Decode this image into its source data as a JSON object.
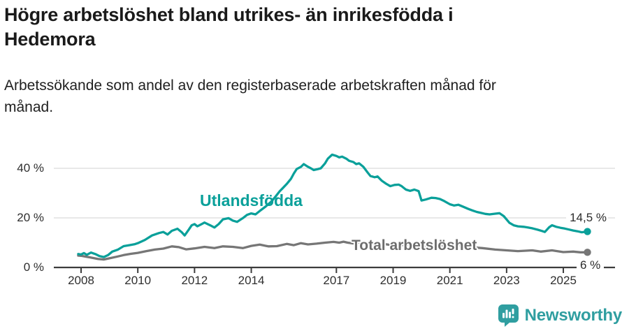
{
  "header": {
    "title_lines": [
      "Högre arbetslöshet bland utrikes- än inrikesfödda i",
      "Hedemora"
    ],
    "subtitle_lines": [
      "Arbetssökande som andel av den registerbaserade arbetskraften månad för",
      "månad."
    ]
  },
  "chart_data": {
    "type": "line",
    "title": "Högre arbetslöshet bland utrikes- än inrikesfödda i Hedemora",
    "subtitle": "Arbetssökande som andel av den registerbaserade arbetskraften månad för månad.",
    "xlabel": "",
    "ylabel": "",
    "ylim": [
      0,
      48
    ],
    "xlim": [
      2007.9,
      2026.0
    ],
    "grid": "horizontal",
    "legend_position": "inline-labels",
    "y_ticks": [
      {
        "value": 0,
        "label": "0 %"
      },
      {
        "value": 20,
        "label": "20 %"
      },
      {
        "value": 40,
        "label": "40 %"
      }
    ],
    "x_ticks": [
      {
        "value": 2008,
        "label": "2008"
      },
      {
        "value": 2010,
        "label": "2010"
      },
      {
        "value": 2012,
        "label": "2012"
      },
      {
        "value": 2014,
        "label": "2014"
      },
      {
        "value": 2017,
        "label": "2017"
      },
      {
        "value": 2019,
        "label": "2019"
      },
      {
        "value": 2021,
        "label": "2021"
      },
      {
        "value": 2023,
        "label": "2023"
      },
      {
        "value": 2025,
        "label": "2025"
      }
    ],
    "series": [
      {
        "name": "Utlandsfödda",
        "color": "#0aa09a",
        "end_label": "14,5 %",
        "end_value": 14.5,
        "points": [
          [
            2007.9,
            5.4
          ],
          [
            2008.0,
            5.2
          ],
          [
            2008.1,
            5.8
          ],
          [
            2008.2,
            5.1
          ],
          [
            2008.35,
            6.0
          ],
          [
            2008.5,
            5.4
          ],
          [
            2008.65,
            4.6
          ],
          [
            2008.8,
            4.2
          ],
          [
            2008.95,
            5.0
          ],
          [
            2009.1,
            6.4
          ],
          [
            2009.3,
            7.2
          ],
          [
            2009.5,
            8.6
          ],
          [
            2009.7,
            9.0
          ],
          [
            2009.9,
            9.4
          ],
          [
            2010.0,
            9.8
          ],
          [
            2010.25,
            11.1
          ],
          [
            2010.5,
            12.9
          ],
          [
            2010.75,
            13.9
          ],
          [
            2010.9,
            14.3
          ],
          [
            2011.05,
            13.3
          ],
          [
            2011.2,
            14.8
          ],
          [
            2011.4,
            15.6
          ],
          [
            2011.55,
            14.2
          ],
          [
            2011.65,
            12.9
          ],
          [
            2011.8,
            15.3
          ],
          [
            2011.9,
            17.0
          ],
          [
            2012.0,
            17.5
          ],
          [
            2012.1,
            16.6
          ],
          [
            2012.25,
            17.5
          ],
          [
            2012.35,
            18.1
          ],
          [
            2012.55,
            17.0
          ],
          [
            2012.7,
            16.1
          ],
          [
            2012.85,
            17.5
          ],
          [
            2013.0,
            19.4
          ],
          [
            2013.2,
            19.9
          ],
          [
            2013.35,
            18.9
          ],
          [
            2013.5,
            18.4
          ],
          [
            2013.7,
            19.9
          ],
          [
            2013.85,
            21.2
          ],
          [
            2014.0,
            21.8
          ],
          [
            2014.15,
            21.4
          ],
          [
            2014.3,
            22.8
          ],
          [
            2014.5,
            24.5
          ],
          [
            2014.7,
            26.5
          ],
          [
            2014.85,
            28.5
          ],
          [
            2015.0,
            30.7
          ],
          [
            2015.1,
            31.9
          ],
          [
            2015.25,
            33.7
          ],
          [
            2015.4,
            35.8
          ],
          [
            2015.5,
            37.9
          ],
          [
            2015.6,
            39.7
          ],
          [
            2015.75,
            40.6
          ],
          [
            2015.85,
            41.7
          ],
          [
            2016.0,
            40.6
          ],
          [
            2016.1,
            40.0
          ],
          [
            2016.2,
            39.3
          ],
          [
            2016.35,
            39.7
          ],
          [
            2016.45,
            40.0
          ],
          [
            2016.6,
            42.0
          ],
          [
            2016.7,
            43.9
          ],
          [
            2016.85,
            45.5
          ],
          [
            2017.0,
            45.0
          ],
          [
            2017.1,
            44.4
          ],
          [
            2017.2,
            44.7
          ],
          [
            2017.35,
            43.9
          ],
          [
            2017.45,
            43.0
          ],
          [
            2017.6,
            42.5
          ],
          [
            2017.7,
            41.7
          ],
          [
            2017.8,
            42.0
          ],
          [
            2017.95,
            40.6
          ],
          [
            2018.1,
            38.3
          ],
          [
            2018.2,
            36.9
          ],
          [
            2018.35,
            36.4
          ],
          [
            2018.45,
            36.7
          ],
          [
            2018.6,
            35.0
          ],
          [
            2018.75,
            33.8
          ],
          [
            2018.9,
            32.8
          ],
          [
            2019.05,
            33.3
          ],
          [
            2019.2,
            33.4
          ],
          [
            2019.3,
            32.8
          ],
          [
            2019.45,
            31.4
          ],
          [
            2019.6,
            30.9
          ],
          [
            2019.75,
            31.4
          ],
          [
            2019.9,
            30.8
          ],
          [
            2020.0,
            27.0
          ],
          [
            2020.15,
            27.4
          ],
          [
            2020.35,
            28.1
          ],
          [
            2020.5,
            28.0
          ],
          [
            2020.65,
            27.6
          ],
          [
            2020.8,
            26.8
          ],
          [
            2021.0,
            25.5
          ],
          [
            2021.15,
            25.0
          ],
          [
            2021.3,
            25.3
          ],
          [
            2021.45,
            24.6
          ],
          [
            2021.65,
            23.6
          ],
          [
            2021.8,
            23.0
          ],
          [
            2021.95,
            22.4
          ],
          [
            2022.1,
            22.0
          ],
          [
            2022.25,
            21.6
          ],
          [
            2022.4,
            21.4
          ],
          [
            2022.6,
            21.7
          ],
          [
            2022.75,
            21.9
          ],
          [
            2022.9,
            20.7
          ],
          [
            2023.1,
            18.0
          ],
          [
            2023.25,
            17.0
          ],
          [
            2023.4,
            16.6
          ],
          [
            2023.6,
            16.4
          ],
          [
            2023.75,
            16.1
          ],
          [
            2023.9,
            15.8
          ],
          [
            2024.1,
            15.2
          ],
          [
            2024.25,
            14.7
          ],
          [
            2024.35,
            14.3
          ],
          [
            2024.5,
            16.2
          ],
          [
            2024.6,
            17.0
          ],
          [
            2024.75,
            16.4
          ],
          [
            2024.9,
            16.0
          ],
          [
            2025.05,
            15.7
          ],
          [
            2025.2,
            15.3
          ],
          [
            2025.35,
            14.9
          ],
          [
            2025.5,
            14.6
          ],
          [
            2025.65,
            14.2
          ],
          [
            2025.85,
            14.5
          ]
        ]
      },
      {
        "name": "Total arbetslöshet",
        "color": "#767676",
        "end_label": "6 %",
        "end_value": 6,
        "points": [
          [
            2007.9,
            4.8
          ],
          [
            2008.0,
            4.7
          ],
          [
            2008.2,
            4.3
          ],
          [
            2008.4,
            3.9
          ],
          [
            2008.6,
            3.4
          ],
          [
            2008.8,
            3.2
          ],
          [
            2009.0,
            3.7
          ],
          [
            2009.25,
            4.3
          ],
          [
            2009.5,
            5.0
          ],
          [
            2009.75,
            5.5
          ],
          [
            2010.0,
            5.9
          ],
          [
            2010.3,
            6.6
          ],
          [
            2010.6,
            7.2
          ],
          [
            2010.9,
            7.6
          ],
          [
            2011.2,
            8.5
          ],
          [
            2011.45,
            8.2
          ],
          [
            2011.7,
            7.3
          ],
          [
            2012.0,
            7.7
          ],
          [
            2012.35,
            8.3
          ],
          [
            2012.7,
            7.8
          ],
          [
            2013.0,
            8.5
          ],
          [
            2013.35,
            8.3
          ],
          [
            2013.7,
            7.8
          ],
          [
            2014.0,
            8.7
          ],
          [
            2014.3,
            9.2
          ],
          [
            2014.6,
            8.5
          ],
          [
            2014.9,
            8.6
          ],
          [
            2015.25,
            9.5
          ],
          [
            2015.5,
            9.0
          ],
          [
            2015.75,
            9.8
          ],
          [
            2016.0,
            9.3
          ],
          [
            2016.3,
            9.6
          ],
          [
            2016.6,
            10.0
          ],
          [
            2016.9,
            10.3
          ],
          [
            2017.1,
            10.0
          ],
          [
            2017.25,
            10.4
          ],
          [
            2017.4,
            10.0
          ],
          [
            2017.6,
            9.7
          ],
          [
            2017.8,
            10.1
          ],
          [
            2018.0,
            9.7
          ],
          [
            2018.3,
            9.3
          ],
          [
            2018.6,
            9.6
          ],
          [
            2018.9,
            9.1
          ],
          [
            2019.2,
            8.9
          ],
          [
            2019.5,
            9.2
          ],
          [
            2019.8,
            8.8
          ],
          [
            2020.1,
            8.6
          ],
          [
            2020.35,
            9.3
          ],
          [
            2020.6,
            9.0
          ],
          [
            2020.9,
            8.7
          ],
          [
            2021.2,
            9.0
          ],
          [
            2021.5,
            8.7
          ],
          [
            2021.8,
            8.1
          ],
          [
            2022.15,
            7.8
          ],
          [
            2022.6,
            7.2
          ],
          [
            2023.0,
            6.9
          ],
          [
            2023.4,
            6.6
          ],
          [
            2023.9,
            6.9
          ],
          [
            2024.2,
            6.4
          ],
          [
            2024.6,
            6.9
          ],
          [
            2025.0,
            6.2
          ],
          [
            2025.35,
            6.4
          ],
          [
            2025.6,
            6.1
          ],
          [
            2025.85,
            6.1
          ]
        ]
      }
    ],
    "colors": {
      "grid": "#d9d9d9",
      "axis": "#3c3c3c",
      "tick_text": "#2e2e2e"
    }
  },
  "footer": {
    "brand": "Newsworthy"
  }
}
